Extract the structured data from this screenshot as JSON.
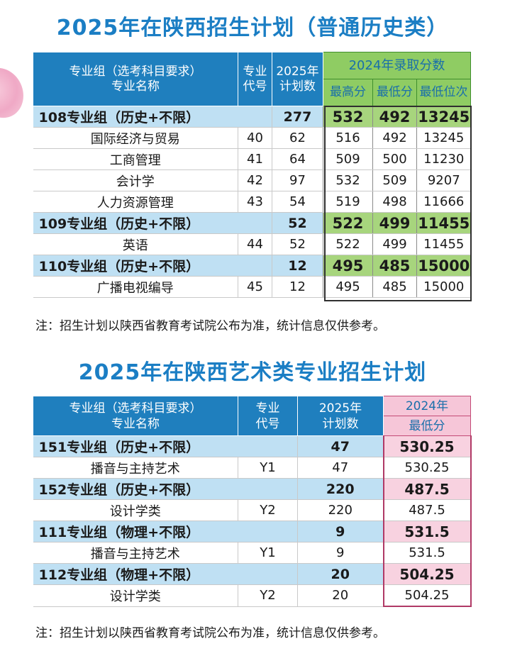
{
  "section1": {
    "title": "2025年在陕西招生计划（普通历史类）",
    "headers": {
      "group_line1": "专业组（选考科目要求）",
      "group_line2": "专业名称",
      "code_line1": "专业",
      "code_line2": "代号",
      "plan_line1": "2025年",
      "plan_line2": "计划数",
      "scores_title": "2024年录取分数",
      "max": "最高分",
      "min": "最低分",
      "rank": "最低位次"
    },
    "rows": [
      {
        "type": "group",
        "name": "108专业组（历史+不限）",
        "code": "",
        "plan": "277",
        "max": "532",
        "min": "492",
        "rank": "13245"
      },
      {
        "type": "major",
        "name": "国际经济与贸易",
        "code": "40",
        "plan": "62",
        "max": "516",
        "min": "492",
        "rank": "13245"
      },
      {
        "type": "major",
        "name": "工商管理",
        "code": "41",
        "plan": "64",
        "max": "509",
        "min": "500",
        "rank": "11230"
      },
      {
        "type": "major",
        "name": "会计学",
        "code": "42",
        "plan": "97",
        "max": "532",
        "min": "509",
        "rank": "9207"
      },
      {
        "type": "major",
        "name": "人力资源管理",
        "code": "43",
        "plan": "54",
        "max": "519",
        "min": "498",
        "rank": "11666"
      },
      {
        "type": "group",
        "name": "109专业组（历史+不限）",
        "code": "",
        "plan": "52",
        "max": "522",
        "min": "499",
        "rank": "11455"
      },
      {
        "type": "major",
        "name": "英语",
        "code": "44",
        "plan": "52",
        "max": "522",
        "min": "499",
        "rank": "11455"
      },
      {
        "type": "group",
        "name": "110专业组（历史+不限）",
        "code": "",
        "plan": "12",
        "max": "495",
        "min": "485",
        "rank": "15000"
      },
      {
        "type": "major",
        "name": "广播电视编导",
        "code": "45",
        "plan": "12",
        "max": "495",
        "min": "485",
        "rank": "15000"
      }
    ],
    "note": "注：招生计划以陕西省教育考试院公布为准，统计信息仅供参考。"
  },
  "section2": {
    "title": "2025年在陕西艺术类专业招生计划",
    "headers": {
      "group_line1": "专业组（选考科目要求）",
      "group_line2": "专业名称",
      "code_line1": "专业",
      "code_line2": "代号",
      "plan_line1": "2025年",
      "plan_line2": "计划数",
      "score_line1": "2024年",
      "score_line2": "最低分"
    },
    "rows": [
      {
        "type": "group",
        "name": "151专业组（历史+不限）",
        "code": "",
        "plan": "47",
        "min": "530.25"
      },
      {
        "type": "major",
        "name": "播音与主持艺术",
        "code": "Y1",
        "plan": "47",
        "min": "530.25"
      },
      {
        "type": "group",
        "name": "152专业组（历史+不限）",
        "code": "",
        "plan": "220",
        "min": "487.5"
      },
      {
        "type": "major",
        "name": "设计学类",
        "code": "Y2",
        "plan": "220",
        "min": "487.5"
      },
      {
        "type": "group",
        "name": "111专业组（物理+不限）",
        "code": "",
        "plan": "9",
        "min": "531.5"
      },
      {
        "type": "major",
        "name": "播音与主持艺术",
        "code": "Y1",
        "plan": "9",
        "min": "531.5"
      },
      {
        "type": "group",
        "name": "112专业组（物理+不限）",
        "code": "",
        "plan": "20",
        "min": "504.25"
      },
      {
        "type": "major",
        "name": "设计学类",
        "code": "Y2",
        "plan": "20",
        "min": "504.25"
      }
    ],
    "note": "注：招生计划以陕西省教育考试院公布为准，统计信息仅供参考。"
  },
  "colors": {
    "title_blue": "#1b7ec4",
    "header_blue": "#1f7fbe",
    "group_row": "#bfe0f3",
    "score_green": "#a7d57d",
    "score_pink": "#f8d2e0"
  }
}
